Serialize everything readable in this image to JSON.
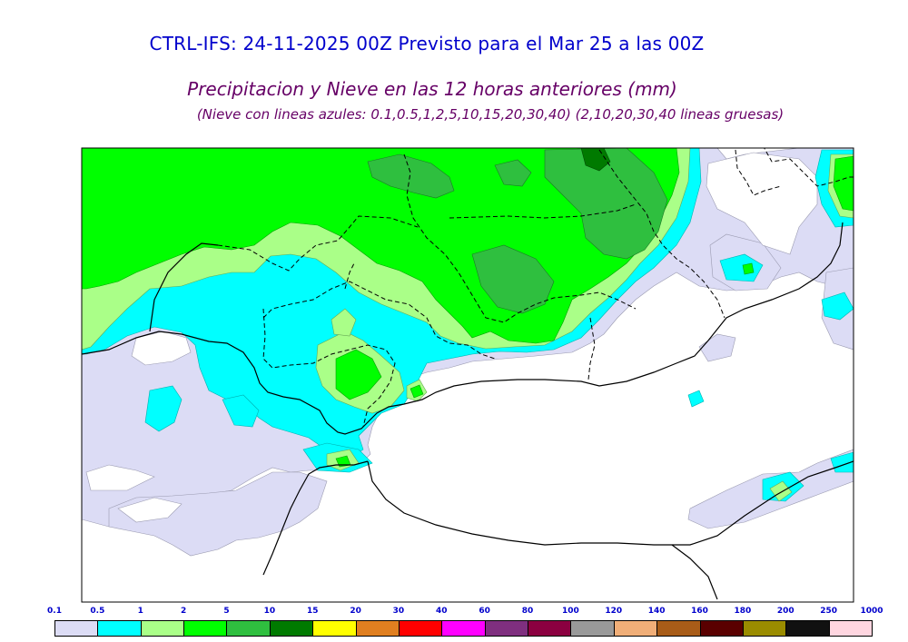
{
  "header": {
    "title": "CTRL-IFS: 24-11-2025 00Z Previsto para el Mar 25 a las 00Z",
    "subtitle": "Precipitacion y Nieve en las 12 horas anteriores (mm)",
    "note": "(Nieve con lineas azules: 0.1,0.5,1,2,5,10,15,20,30,40)  (2,10,20,30,40 lineas gruesas)"
  },
  "colors": {
    "background": "#ffffff",
    "map_border": "#000000",
    "p01": "#dcdcf5",
    "p05": "#00ffff",
    "p1": "#aaff88",
    "p2": "#00ff00",
    "p5": "#2fbf3f",
    "p10": "#007a00"
  },
  "scale": {
    "labels": [
      "0.1",
      "0.5",
      "1",
      "2",
      "5",
      "10",
      "15",
      "20",
      "30",
      "40",
      "60",
      "80",
      "100",
      "120",
      "140",
      "160",
      "180",
      "200",
      "250",
      "1000"
    ],
    "swatches": [
      "#dcdcf5",
      "#00ffff",
      "#aaff88",
      "#00ff00",
      "#2fbf3f",
      "#007a00",
      "#ffff00",
      "#e07f20",
      "#ff0000",
      "#ff00ff",
      "#7f2f7f",
      "#8b0040",
      "#999999",
      "#f0ae78",
      "#a85c18",
      "#5a0000",
      "#9a8c00",
      "#111111",
      "#ffd6e0"
    ]
  }
}
